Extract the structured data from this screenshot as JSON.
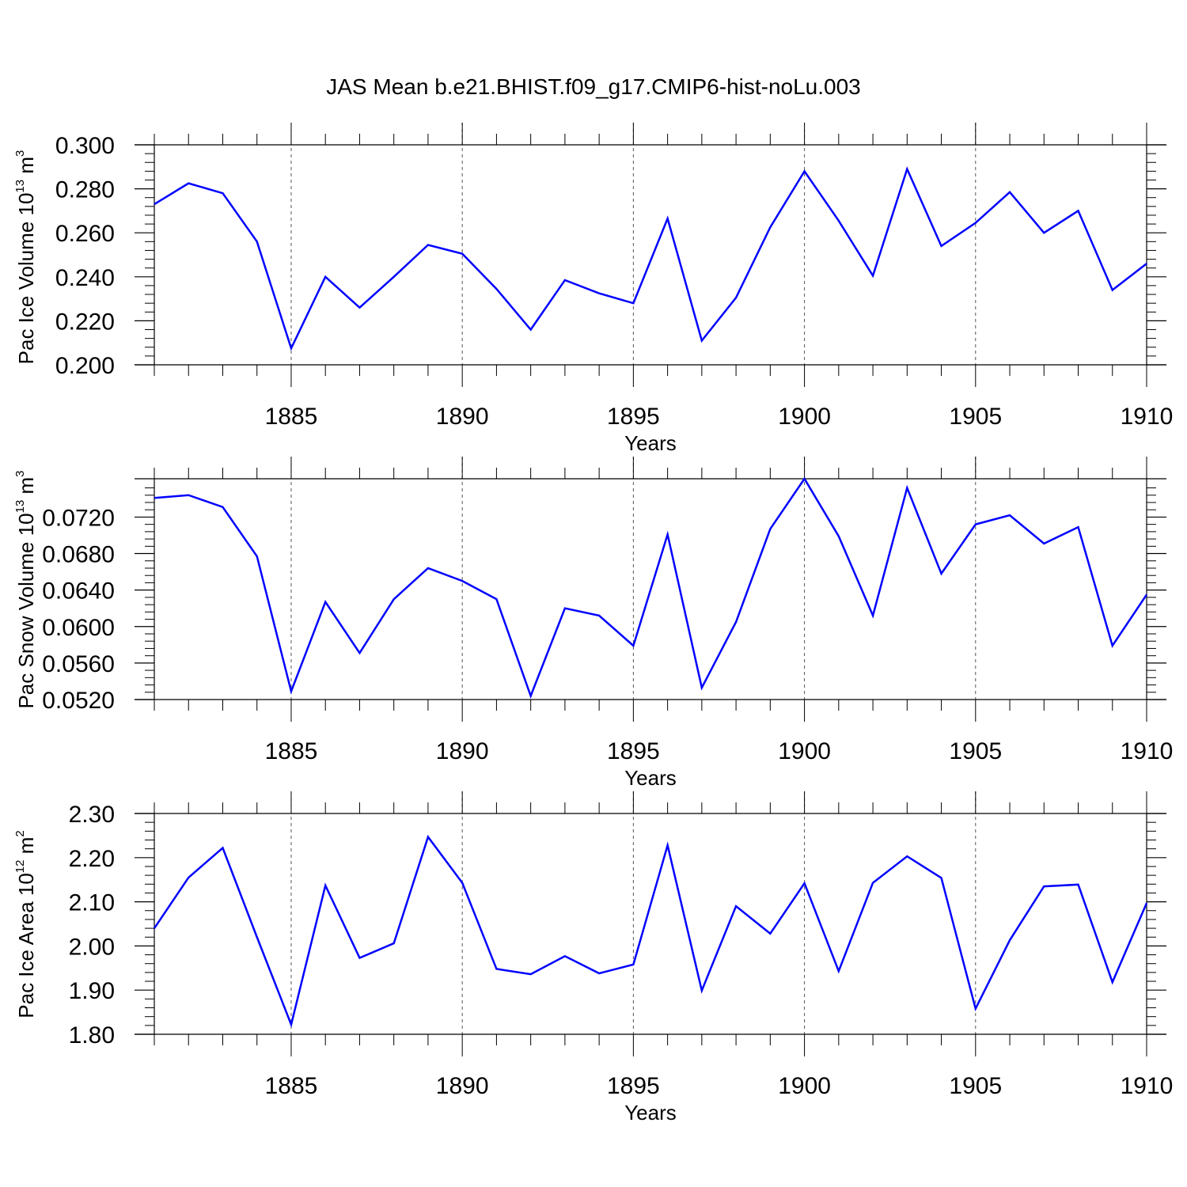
{
  "title": "JAS Mean b.e21.BHIST.f09_g17.CMIP6-hist-noLu.003",
  "colors": {
    "line": "#0000ff",
    "axis": "#000000",
    "grid": "#555555"
  },
  "chart_data": [
    {
      "type": "line",
      "ylabel": {
        "text": "Pac Ice Volume 10",
        "exp": "13",
        "unit": " m",
        "unit_exp": "3"
      },
      "xlabel": "Years",
      "xlim": [
        1881,
        1910
      ],
      "ylim": [
        0.2,
        0.3
      ],
      "xticks": [
        "1885",
        "1890",
        "1895",
        "1900",
        "1905",
        "1910"
      ],
      "yticks": [
        "0.200",
        "0.220",
        "0.240",
        "0.260",
        "0.280",
        "0.300"
      ],
      "x": [
        1881,
        1882,
        1883,
        1884,
        1885,
        1886,
        1887,
        1888,
        1889,
        1890,
        1891,
        1892,
        1893,
        1894,
        1895,
        1896,
        1897,
        1898,
        1899,
        1900,
        1901,
        1902,
        1903,
        1904,
        1905,
        1906,
        1907,
        1908,
        1909,
        1910
      ],
      "values": [
        0.273,
        0.2825,
        0.278,
        0.256,
        0.2075,
        0.24,
        0.226,
        0.24,
        0.2545,
        0.2505,
        0.2345,
        0.216,
        0.2385,
        0.2325,
        0.228,
        0.2665,
        0.211,
        0.2305,
        0.2625,
        0.288,
        0.2655,
        0.2405,
        0.289,
        0.254,
        0.2645,
        0.2785,
        0.26,
        0.27,
        0.234,
        0.246
      ]
    },
    {
      "type": "line",
      "ylabel": {
        "text": "Pac Snow Volume 10",
        "exp": "13",
        "unit": " m",
        "unit_exp": "3"
      },
      "xlabel": "Years",
      "xlim": [
        1881,
        1910
      ],
      "ylim": [
        0.052,
        0.0762
      ],
      "xticks": [
        "1885",
        "1890",
        "1895",
        "1900",
        "1905",
        "1910"
      ],
      "yticks": [
        "0.0520",
        "0.0560",
        "0.0600",
        "0.0640",
        "0.0680",
        "0.0720"
      ],
      "x": [
        1881,
        1882,
        1883,
        1884,
        1885,
        1886,
        1887,
        1888,
        1889,
        1890,
        1891,
        1892,
        1893,
        1894,
        1895,
        1896,
        1897,
        1898,
        1899,
        1900,
        1901,
        1902,
        1903,
        1904,
        1905,
        1906,
        1907,
        1908,
        1909,
        1910
      ],
      "values": [
        0.0741,
        0.0744,
        0.0731,
        0.0677,
        0.0529,
        0.0627,
        0.0571,
        0.063,
        0.0664,
        0.065,
        0.063,
        0.0524,
        0.062,
        0.0612,
        0.0579,
        0.0701,
        0.0533,
        0.0605,
        0.0707,
        0.0762,
        0.0699,
        0.0612,
        0.0752,
        0.0658,
        0.0712,
        0.0722,
        0.0691,
        0.0709,
        0.0579,
        0.0635
      ]
    },
    {
      "type": "line",
      "ylabel": {
        "text": "Pac Ice Area 10",
        "exp": "12",
        "unit": " m",
        "unit_exp": "2"
      },
      "xlabel": "Years",
      "xlim": [
        1881,
        1910
      ],
      "ylim": [
        1.8,
        2.3
      ],
      "xticks": [
        "1885",
        "1890",
        "1895",
        "1900",
        "1905",
        "1910"
      ],
      "yticks": [
        "1.80",
        "1.90",
        "2.00",
        "2.10",
        "2.20",
        "2.30"
      ],
      "x": [
        1881,
        1882,
        1883,
        1884,
        1885,
        1886,
        1887,
        1888,
        1889,
        1890,
        1891,
        1892,
        1893,
        1894,
        1895,
        1896,
        1897,
        1898,
        1899,
        1900,
        1901,
        1902,
        1903,
        1904,
        1905,
        1906,
        1907,
        1908,
        1909,
        1910
      ],
      "values": [
        2.04,
        2.155,
        2.222,
        2.02,
        1.822,
        2.137,
        1.973,
        2.006,
        2.247,
        2.143,
        1.948,
        1.936,
        1.977,
        1.938,
        1.958,
        2.228,
        1.899,
        2.09,
        2.028,
        2.142,
        1.943,
        2.143,
        2.203,
        2.154,
        1.858,
        2.013,
        2.135,
        2.139,
        1.918,
        2.097
      ]
    }
  ]
}
